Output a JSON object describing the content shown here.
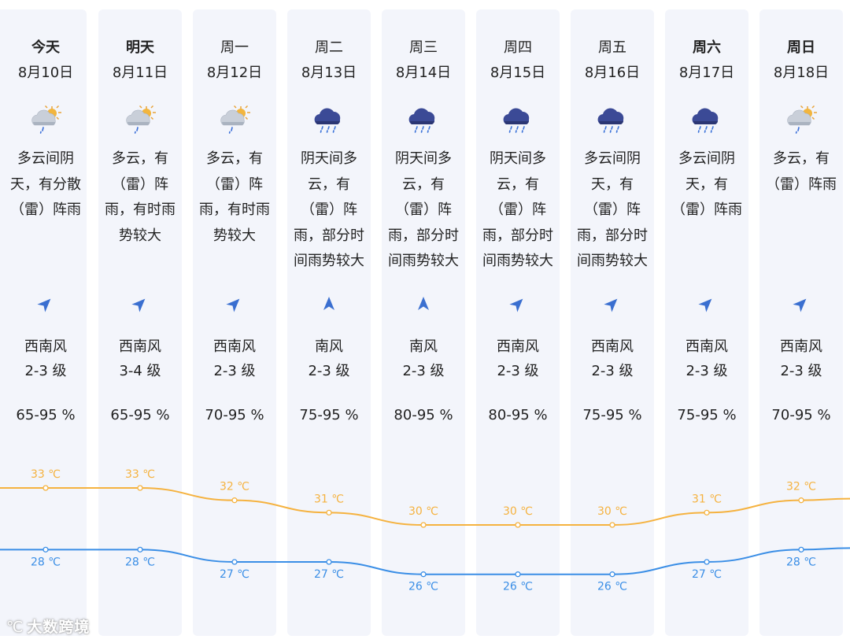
{
  "forecast": {
    "days": [
      {
        "name": "今天",
        "date": "8月10日",
        "bold": true,
        "icon": "partly-cloudy-sun-rain",
        "desc": [
          "多云间阴",
          "天，有分散",
          "（雷）阵雨"
        ],
        "wind_dir": "西南风",
        "wind_level": "2-3 级",
        "wind_arrow": "southwest",
        "humidity": "65-95 %",
        "high": "33 ℃",
        "low": "28 ℃"
      },
      {
        "name": "明天",
        "date": "8月11日",
        "bold": true,
        "icon": "partly-cloudy-sun-rain",
        "desc": [
          "多云，有",
          "（雷）阵",
          "雨，有时雨",
          "势较大"
        ],
        "wind_dir": "西南风",
        "wind_level": "3-4 级",
        "wind_arrow": "southwest",
        "humidity": "65-95 %",
        "high": "33 ℃",
        "low": "28 ℃"
      },
      {
        "name": "周一",
        "date": "8月12日",
        "bold": false,
        "icon": "partly-cloudy-sun-rain",
        "desc": [
          "多云，有",
          "（雷）阵",
          "雨，有时雨",
          "势较大"
        ],
        "wind_dir": "西南风",
        "wind_level": "2-3 级",
        "wind_arrow": "southwest",
        "humidity": "70-95 %",
        "high": "32 ℃",
        "low": "27 ℃"
      },
      {
        "name": "周二",
        "date": "8月13日",
        "bold": false,
        "icon": "dark-cloud-rain",
        "desc": [
          "阴天间多",
          "云，有",
          "（雷）阵",
          "雨，部分时",
          "间雨势较大"
        ],
        "wind_dir": "南风",
        "wind_level": "2-3 级",
        "wind_arrow": "south",
        "humidity": "75-95 %",
        "high": "31 ℃",
        "low": "27 ℃"
      },
      {
        "name": "周三",
        "date": "8月14日",
        "bold": false,
        "icon": "dark-cloud-rain",
        "desc": [
          "阴天间多",
          "云，有",
          "（雷）阵",
          "雨，部分时",
          "间雨势较大"
        ],
        "wind_dir": "南风",
        "wind_level": "2-3 级",
        "wind_arrow": "south",
        "humidity": "80-95 %",
        "high": "30 ℃",
        "low": "26 ℃"
      },
      {
        "name": "周四",
        "date": "8月15日",
        "bold": false,
        "icon": "dark-cloud-rain",
        "desc": [
          "阴天间多",
          "云，有",
          "（雷）阵",
          "雨，部分时",
          "间雨势较大"
        ],
        "wind_dir": "西南风",
        "wind_level": "2-3 级",
        "wind_arrow": "southwest",
        "humidity": "80-95 %",
        "high": "30 ℃",
        "low": "26 ℃"
      },
      {
        "name": "周五",
        "date": "8月16日",
        "bold": false,
        "icon": "dark-cloud-rain",
        "desc": [
          "多云间阴",
          "天，有",
          "（雷）阵",
          "雨，部分时",
          "间雨势较大"
        ],
        "wind_dir": "西南风",
        "wind_level": "2-3 级",
        "wind_arrow": "southwest",
        "humidity": "75-95 %",
        "high": "30 ℃",
        "low": "26 ℃"
      },
      {
        "name": "周六",
        "date": "8月17日",
        "bold": true,
        "icon": "dark-cloud-rain",
        "desc": [
          "多云间阴",
          "天，有",
          "（雷）阵雨"
        ],
        "wind_dir": "西南风",
        "wind_level": "2-3 级",
        "wind_arrow": "southwest",
        "humidity": "75-95 %",
        "high": "31 ℃",
        "low": "27 ℃"
      },
      {
        "name": "周日",
        "date": "8月18日",
        "bold": true,
        "icon": "partly-cloudy-sun-rain",
        "desc": [
          "多云，有",
          "（雷）阵雨"
        ],
        "wind_dir": "西南风",
        "wind_level": "2-3 级",
        "wind_arrow": "southwest",
        "humidity": "70-95 %",
        "high": "32 ℃",
        "low": "28 ℃"
      }
    ]
  },
  "chart_data": {
    "type": "line",
    "categories": [
      "今天",
      "明天",
      "周一",
      "周二",
      "周三",
      "周四",
      "周五",
      "周六",
      "周日"
    ],
    "series": [
      {
        "values": [
          33,
          33,
          32,
          31,
          30,
          30,
          30,
          31,
          32
        ]
      },
      {
        "values": [
          28,
          28,
          27,
          27,
          26,
          26,
          26,
          27,
          28
        ]
      }
    ],
    "colors": {
      "high": "#f5b23f",
      "low": "#3a8ee6"
    }
  },
  "watermark": "大数跨境"
}
